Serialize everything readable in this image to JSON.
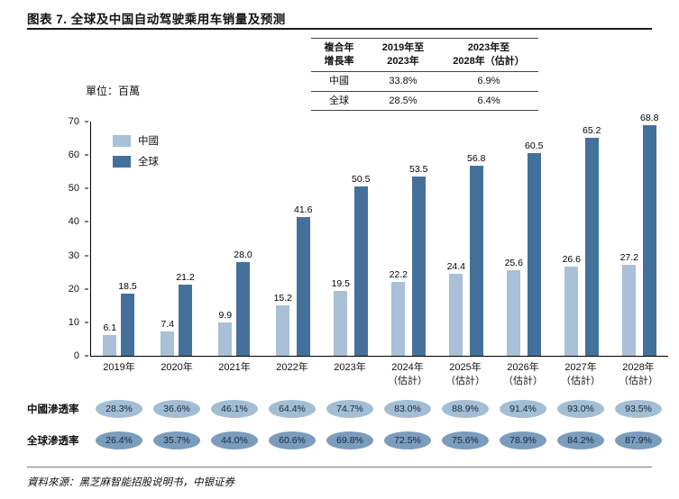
{
  "page": {
    "title": "图表 7. 全球及中国自动驾驶乘用车销量及预测",
    "unit_label": "單位：百萬",
    "source": "資料來源：黑芝麻智能招股说明书，中银证券"
  },
  "cagr_table": {
    "corner_header": "複合年\n增長率",
    "col_headers": [
      "2019年至\n2023年",
      "2023年至\n2028年（估計）"
    ],
    "rows": [
      {
        "label": "中國",
        "values": [
          "33.8%",
          "6.9%"
        ]
      },
      {
        "label": "全球",
        "values": [
          "28.5%",
          "6.4%"
        ]
      }
    ]
  },
  "chart_data": {
    "type": "bar",
    "title": "全球及中国自动驾驶乘用车销量及预测",
    "unit": "百萬",
    "categories": [
      "2019年",
      "2020年",
      "2021年",
      "2022年",
      "2023年",
      "2024年\n（估計）",
      "2025年\n（估計）",
      "2026年\n（估計）",
      "2027年\n（估計）",
      "2028年\n（估計）"
    ],
    "series": [
      {
        "name": "中國",
        "color": "#a9c0d6",
        "values": [
          6.1,
          7.4,
          9.9,
          15.2,
          19.5,
          22.2,
          24.4,
          25.6,
          26.6,
          27.2
        ]
      },
      {
        "name": "全球",
        "color": "#44719c",
        "values": [
          18.5,
          21.2,
          28.0,
          41.6,
          50.5,
          53.5,
          56.8,
          60.5,
          65.2,
          68.8
        ]
      }
    ],
    "ylim": [
      0,
      70
    ],
    "yticks": [
      0,
      10,
      20,
      30,
      40,
      50,
      60,
      70
    ],
    "grid": false,
    "legend_position": "top-left"
  },
  "penetration": {
    "rows": [
      {
        "label": "中國滲透率",
        "badge_color": "#a3bdd4",
        "values": [
          "28.3%",
          "36.6%",
          "46.1%",
          "64.4%",
          "74.7%",
          "83.0%",
          "88.9%",
          "91.4%",
          "93.0%",
          "93.5%"
        ]
      },
      {
        "label": "全球滲透率",
        "badge_color": "#7b9cbd",
        "values": [
          "26.4%",
          "35.7%",
          "44.0%",
          "60.6%",
          "69.8%",
          "72.5%",
          "75.6%",
          "78.9%",
          "84.2%",
          "87.9%"
        ]
      }
    ]
  }
}
